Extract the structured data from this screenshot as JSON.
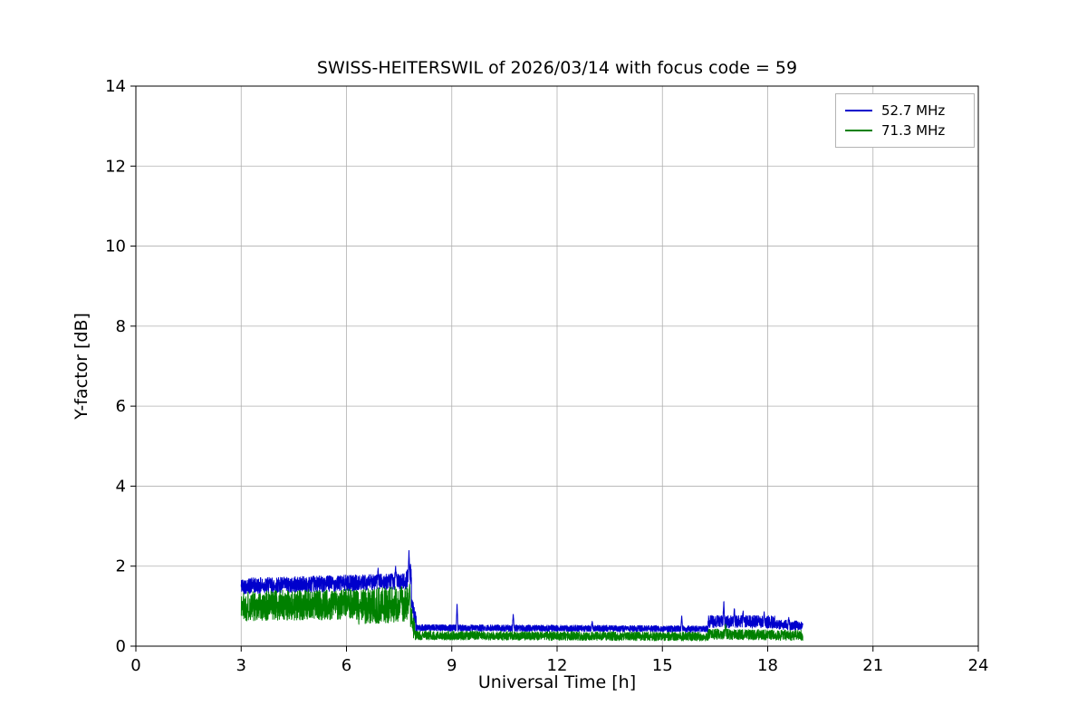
{
  "chart_data": {
    "type": "line",
    "title": "SWISS-HEITERSWIL of 2026/03/14 with focus code = 59",
    "xlabel": "Universal Time [h]",
    "ylabel": "Y-factor [dB]",
    "xlim": [
      0,
      24
    ],
    "ylim": [
      0,
      14
    ],
    "xticks": [
      0,
      3,
      6,
      9,
      12,
      15,
      18,
      21,
      24
    ],
    "yticks": [
      0,
      2,
      4,
      6,
      8,
      10,
      12,
      14
    ],
    "grid": true,
    "legend_position": "upper right",
    "segment_format": "[t_start_h, t_end_h, level_start_dB, level_end_dB, noise_amplitude_dB]",
    "spike_format": "[t_h, peak_dB]",
    "series": [
      {
        "name": "52.7 MHz",
        "color": "#0000cc",
        "x_range_h": [
          3.0,
          19.0
        ],
        "segments": [
          [
            3.0,
            7.7,
            1.5,
            1.62,
            0.2
          ],
          [
            7.7,
            7.85,
            1.6,
            1.9,
            0.3
          ],
          [
            7.85,
            8.0,
            1.1,
            0.5,
            0.22
          ],
          [
            8.0,
            16.3,
            0.46,
            0.43,
            0.08
          ],
          [
            16.3,
            18.2,
            0.62,
            0.6,
            0.16
          ],
          [
            18.2,
            19.0,
            0.55,
            0.5,
            0.12
          ]
        ],
        "spikes": [
          [
            6.9,
            1.95
          ],
          [
            7.4,
            2.0
          ],
          [
            7.78,
            2.42
          ],
          [
            9.15,
            1.1
          ],
          [
            10.75,
            0.82
          ],
          [
            13.0,
            0.62
          ],
          [
            15.55,
            0.78
          ],
          [
            16.75,
            1.15
          ],
          [
            17.05,
            0.95
          ],
          [
            17.3,
            0.88
          ],
          [
            17.9,
            0.86
          ],
          [
            18.6,
            0.72
          ]
        ]
      },
      {
        "name": "71.3 MHz",
        "color": "#008000",
        "x_range_h": [
          3.0,
          19.0
        ],
        "segments": [
          [
            3.0,
            6.2,
            1.0,
            1.05,
            0.38
          ],
          [
            6.2,
            7.75,
            0.98,
            1.05,
            0.45
          ],
          [
            7.75,
            7.95,
            1.0,
            0.35,
            0.28
          ],
          [
            7.95,
            16.3,
            0.27,
            0.24,
            0.11
          ],
          [
            16.3,
            19.0,
            0.3,
            0.27,
            0.13
          ]
        ],
        "spikes": [
          [
            7.8,
            1.6
          ],
          [
            16.8,
            0.55
          ]
        ]
      }
    ]
  }
}
